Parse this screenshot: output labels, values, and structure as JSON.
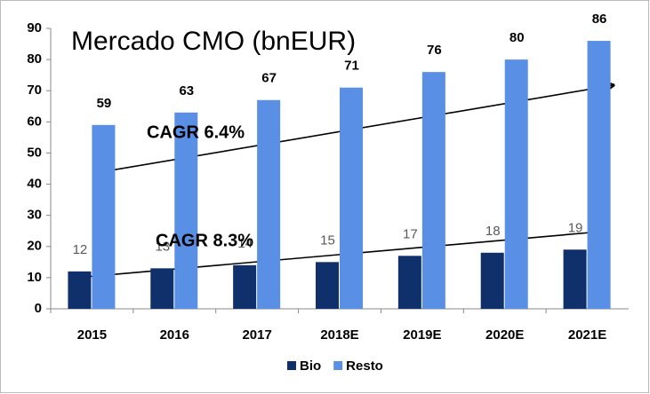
{
  "chart_data": {
    "type": "bar",
    "title": "Mercado CMO (bnEUR)",
    "categories": [
      "2015",
      "2016",
      "2017",
      "2018E",
      "2019E",
      "2020E",
      "2021E"
    ],
    "series": [
      {
        "name": "Bio",
        "color": "#10306b",
        "values": [
          12,
          13,
          14,
          15,
          17,
          18,
          19
        ]
      },
      {
        "name": "Resto",
        "color": "#5a8fe6",
        "values": [
          59,
          63,
          67,
          71,
          76,
          80,
          86
        ]
      }
    ],
    "annotations": [
      "CAGR 6.4%",
      "CAGR 8.3%"
    ],
    "ylim": [
      0,
      90
    ],
    "yticks": [
      0,
      10,
      20,
      30,
      40,
      50,
      60,
      70,
      80,
      90
    ],
    "grid": false,
    "legend": "bottom"
  }
}
